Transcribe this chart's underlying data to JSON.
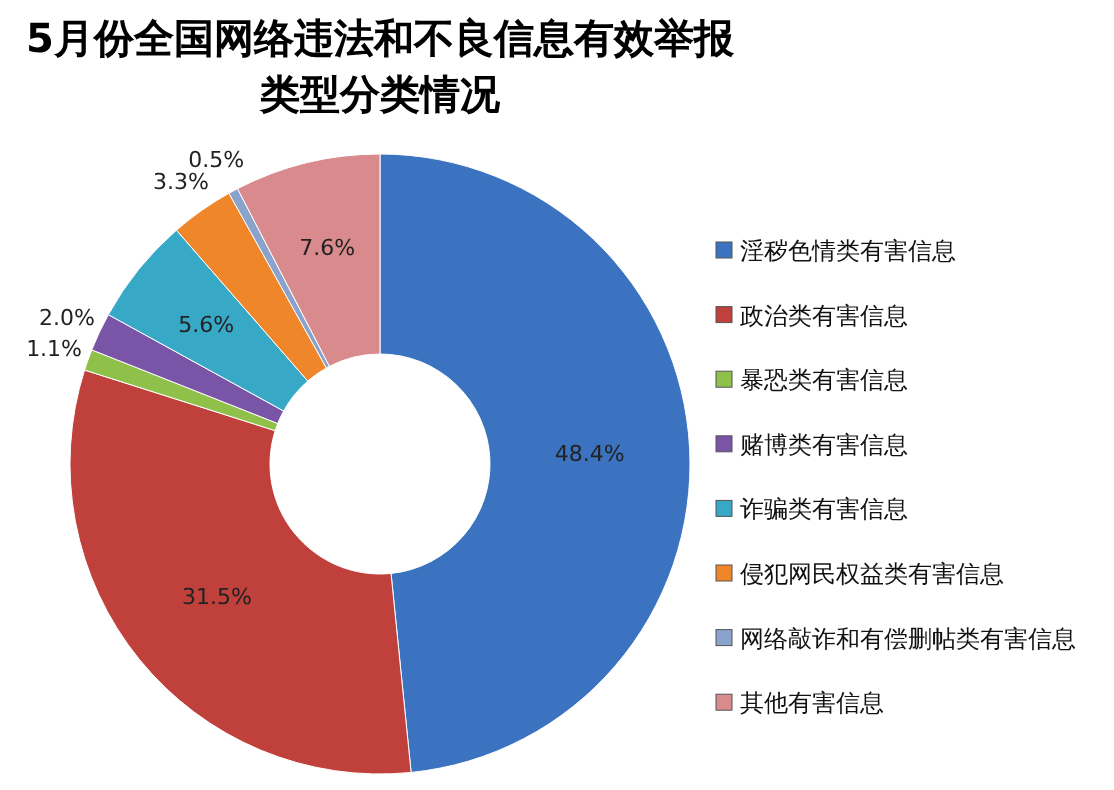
{
  "chart_data": {
    "type": "donut",
    "title": "5月份全国网络违法和不良信息有效举报类型分类情况",
    "categories": [
      "淫秽色情类有害信息",
      "政治类有害信息",
      "暴恐类有害信息",
      "赌博类有害信息",
      "诈骗类有害信息",
      "侵犯网民权益类有害信息",
      "网络敲诈和有偿删帖类有害信息",
      "其他有害信息"
    ],
    "values": [
      48.4,
      31.5,
      1.1,
      2.0,
      5.6,
      3.3,
      0.5,
      7.6
    ],
    "value_labels": [
      "48.4%",
      "31.5%",
      "1.1%",
      "2.0%",
      "5.6%",
      "3.3%",
      "0.5%",
      "7.6%"
    ],
    "colors": [
      "#3b73c0",
      "#c0403c",
      "#8fc04a",
      "#7a54a6",
      "#37a9c6",
      "#f0862a",
      "#8aa3cc",
      "#d98a8c"
    ],
    "legend": "right"
  }
}
